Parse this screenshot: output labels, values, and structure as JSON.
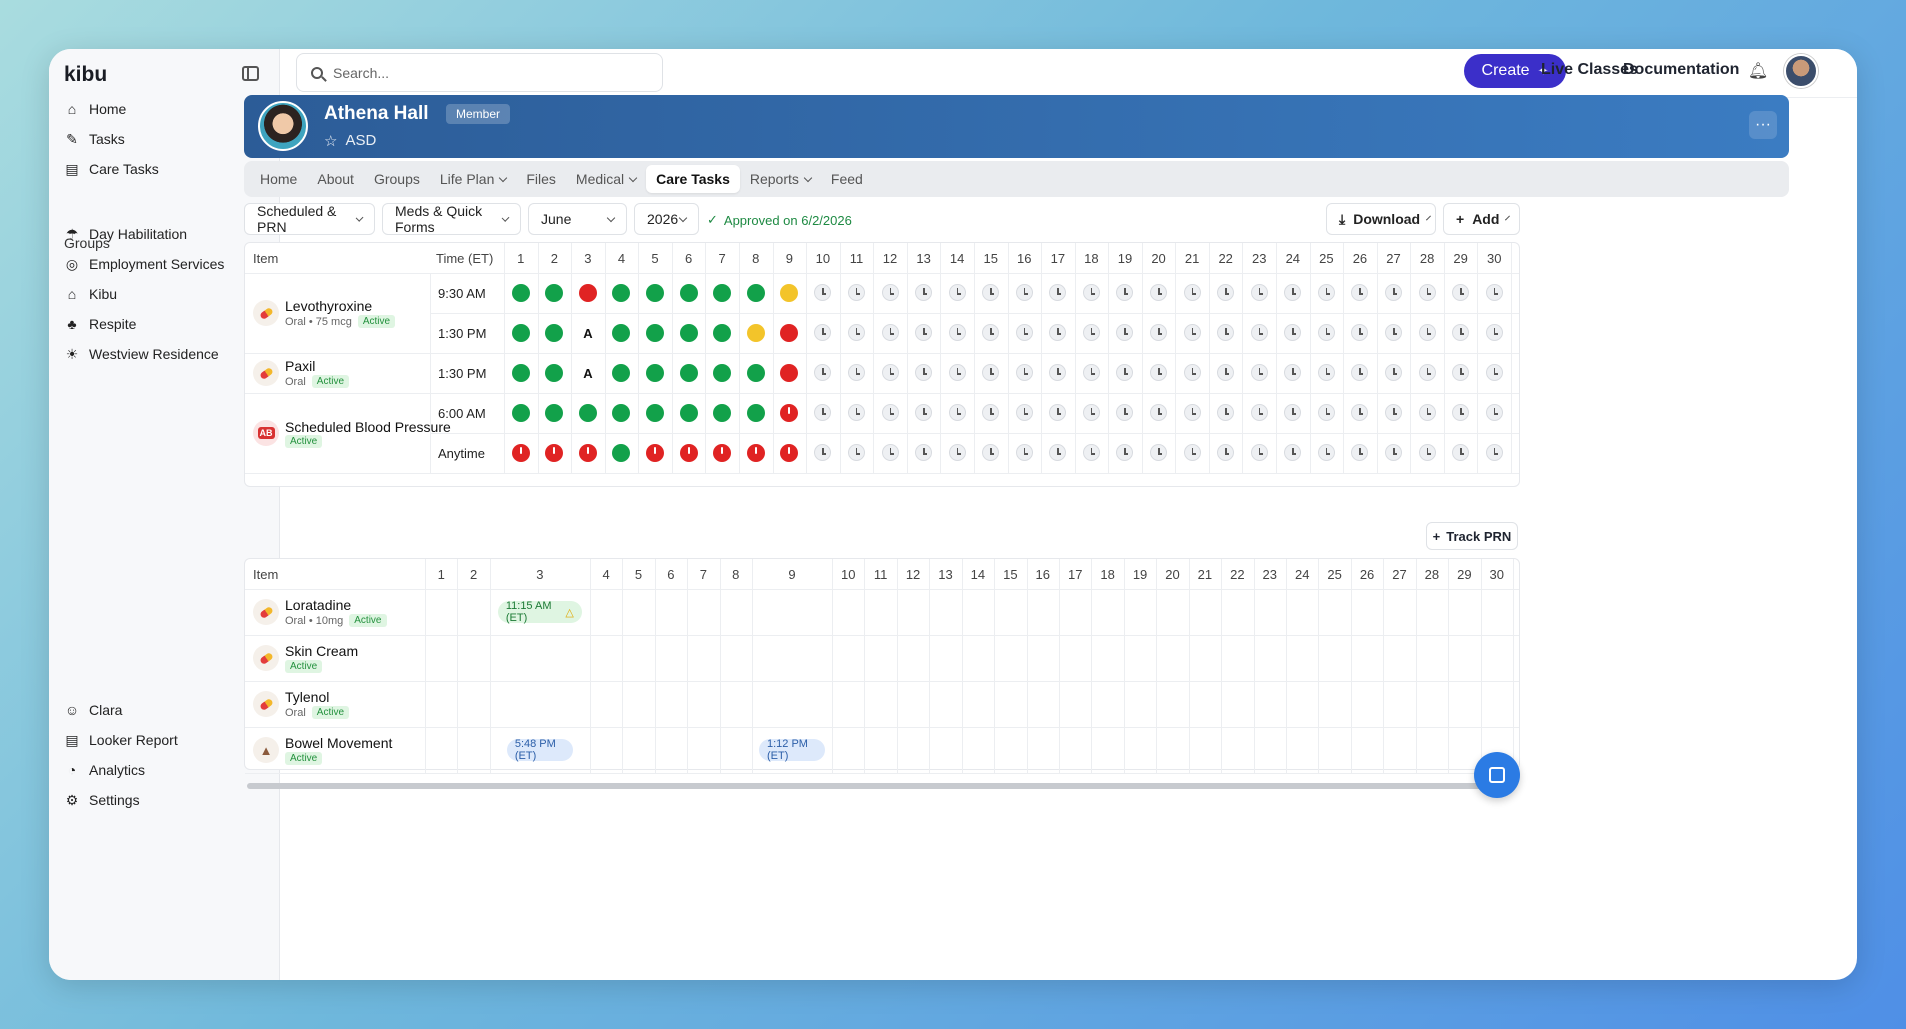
{
  "app": {
    "logo": "kibu"
  },
  "sidebar": {
    "main": [
      {
        "label": "Home",
        "icon": "home-icon",
        "glyph": "⌂"
      },
      {
        "label": "Tasks",
        "icon": "tasks-icon",
        "glyph": "✎"
      },
      {
        "label": "Care Tasks",
        "icon": "clipboard-icon",
        "glyph": "▤"
      }
    ],
    "groups_title": "Groups",
    "groups": [
      {
        "label": "Day Habilitation",
        "icon": "umbrella-icon",
        "glyph": "☂"
      },
      {
        "label": "Employment Services",
        "icon": "target-icon",
        "glyph": "◎"
      },
      {
        "label": "Kibu",
        "icon": "house-icon",
        "glyph": "⌂"
      },
      {
        "label": "Respite",
        "icon": "palm-icon",
        "glyph": "♣"
      },
      {
        "label": "Westview Residence",
        "icon": "sunset-icon",
        "glyph": "☀"
      }
    ],
    "footer": [
      {
        "label": "Clara",
        "icon": "clara-avatar-icon",
        "glyph": "☺"
      },
      {
        "label": "Looker Report",
        "icon": "report-icon",
        "glyph": "▤"
      },
      {
        "label": "Analytics",
        "icon": "analytics-icon",
        "glyph": "◔"
      },
      {
        "label": "Settings",
        "icon": "settings-icon",
        "glyph": "⚙"
      }
    ]
  },
  "topbar": {
    "search_placeholder": "Search...",
    "create_label": "Create",
    "live_classes": "Live Classes",
    "documentation": "Documentation"
  },
  "profile": {
    "name": "Athena Hall",
    "badge": "Member",
    "tag": "ASD"
  },
  "tabs": [
    {
      "label": "Home",
      "dropdown": false
    },
    {
      "label": "About",
      "dropdown": false
    },
    {
      "label": "Groups",
      "dropdown": false
    },
    {
      "label": "Life Plan",
      "dropdown": true
    },
    {
      "label": "Files",
      "dropdown": false
    },
    {
      "label": "Medical",
      "dropdown": true
    },
    {
      "label": "Care Tasks",
      "dropdown": false,
      "active": true
    },
    {
      "label": "Reports",
      "dropdown": true
    },
    {
      "label": "Feed",
      "dropdown": false
    }
  ],
  "filters": {
    "type": "Scheduled & PRN",
    "forms": "Meds & Quick Forms",
    "month": "June",
    "year": "2026",
    "approved": "Approved on 6/2/2026",
    "download": "Download",
    "add": "Add"
  },
  "scheduled": {
    "headers": {
      "item": "Item",
      "time": "Time (ET)"
    },
    "days": [
      "1",
      "2",
      "3",
      "4",
      "5",
      "6",
      "7",
      "8",
      "9",
      "10",
      "11",
      "12",
      "13",
      "14",
      "15",
      "16",
      "17",
      "18",
      "19",
      "20",
      "21",
      "22",
      "23",
      "24",
      "25",
      "26",
      "27",
      "28",
      "29",
      "30"
    ],
    "items": [
      {
        "name": "Levothyroxine",
        "sub": "Oral • 75 mcg",
        "status": "Active",
        "icon": "pill-icon",
        "rows": [
          {
            "time": "9:30 AM",
            "cells": [
              "g",
              "g",
              "r",
              "g",
              "g",
              "g",
              "g",
              "g",
              "y"
            ]
          },
          {
            "time": "1:30 PM",
            "cells": [
              "g",
              "g",
              "A",
              "g",
              "g",
              "g",
              "g",
              "y",
              "r"
            ]
          }
        ]
      },
      {
        "name": "Paxil",
        "sub": "Oral",
        "status": "Active",
        "icon": "pill-icon",
        "rows": [
          {
            "time": "1:30 PM",
            "cells": [
              "g",
              "g",
              "A",
              "g",
              "g",
              "g",
              "g",
              "g",
              "r"
            ]
          }
        ]
      },
      {
        "name": "Scheduled Blood Pressure",
        "sub": "",
        "status": "Active",
        "icon": "blood-pressure-icon",
        "icon_text": "AB",
        "rows": [
          {
            "time": "6:00 AM",
            "cells": [
              "g",
              "g",
              "g",
              "g",
              "g",
              "g",
              "g",
              "g",
              "late"
            ]
          },
          {
            "time": "Anytime",
            "cells": [
              "late",
              "late",
              "late",
              "g",
              "late",
              "late",
              "late",
              "late",
              "late"
            ]
          }
        ]
      }
    ]
  },
  "prn": {
    "track_label": "Track PRN",
    "headers": {
      "item": "Item"
    },
    "items": [
      {
        "name": "Loratadine",
        "sub": "Oral • 10mg",
        "status": "Active",
        "icon": "pill-icon",
        "events": [
          {
            "day": 3,
            "label": "11:15 AM (ET)",
            "style": "green",
            "warn": true
          }
        ]
      },
      {
        "name": "Skin Cream",
        "sub": "",
        "status": "Active",
        "icon": "pill-icon",
        "events": []
      },
      {
        "name": "Tylenol",
        "sub": "Oral",
        "status": "Active",
        "icon": "pill-icon",
        "events": []
      },
      {
        "name": "Bowel Movement",
        "sub": "",
        "status": "Active",
        "icon": "warning-icon",
        "events": [
          {
            "day": 3,
            "label": "5:48 PM (ET)",
            "style": "blue"
          },
          {
            "day": 9,
            "label": "1:12 PM (ET)",
            "style": "blue"
          }
        ]
      }
    ]
  },
  "colors": {
    "accent": "#3b2fc9",
    "banner": "#2c5c97",
    "green": "#12a14a",
    "red": "#e02323",
    "yellow": "#f3c42a"
  }
}
